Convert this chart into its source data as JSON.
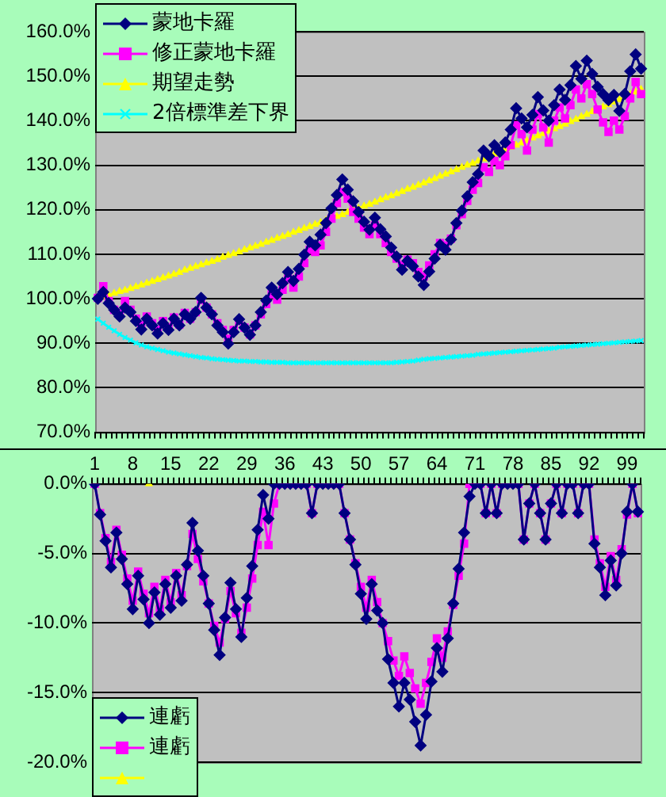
{
  "chart_data": [
    {
      "type": "line",
      "categories": [
        null,
        null,
        null,
        null,
        null,
        null,
        null,
        null,
        null,
        null,
        null,
        null,
        null,
        null,
        null,
        null,
        null,
        null,
        null,
        null,
        null,
        null,
        null,
        null,
        null,
        null,
        null,
        null,
        null,
        null,
        null,
        null,
        null,
        null,
        null,
        null,
        null,
        null,
        null,
        null,
        null,
        null,
        null,
        null,
        null,
        null,
        null,
        null,
        null,
        null,
        null,
        null,
        null,
        null,
        null,
        null,
        null,
        null,
        null,
        null,
        null,
        null,
        null,
        null,
        null,
        null,
        null,
        null,
        null,
        null,
        null,
        null,
        null,
        null,
        null,
        null,
        null,
        null,
        null,
        null,
        null,
        null,
        null,
        null,
        null,
        null,
        null,
        null,
        null,
        null,
        null,
        null,
        null,
        null,
        null,
        null,
        null,
        null,
        null,
        null,
        null
      ],
      "series": [
        {
          "name": "蒙地卡羅",
          "color": "#000080",
          "marker": "diamond",
          "values": [
            100,
            101.5,
            99,
            97.5,
            96,
            98,
            97,
            95,
            93.1,
            95.5,
            94,
            92.2,
            94.5,
            93,
            95.5,
            94,
            96.5,
            95.5,
            97,
            100.2,
            98,
            96.5,
            94,
            92.5,
            89.9,
            92.5,
            95.4,
            93.5,
            91.9,
            94,
            97,
            99.6,
            102.5,
            101,
            103.5,
            106,
            104,
            106.7,
            109.9,
            112.8,
            112,
            114.4,
            117,
            120.3,
            123.3,
            126.8,
            124.5,
            121.9,
            119.5,
            117.3,
            115.5,
            118.2,
            115.6,
            114,
            111.5,
            109.5,
            106.5,
            108.5,
            107.3,
            105,
            103.1,
            106.1,
            109,
            112.1,
            111,
            113.3,
            117,
            119.8,
            123,
            126.2,
            128,
            133.3,
            132,
            134.5,
            133,
            135.1,
            138,
            142.8,
            140.5,
            138.5,
            141.3,
            145.3,
            142.3,
            140,
            143.5,
            147,
            144.7,
            148,
            152.3,
            149.4,
            153.5,
            150.5,
            147.6,
            146,
            144.6,
            145.8,
            142.2,
            146,
            151.1,
            154.9,
            151.7
          ]
        },
        {
          "name": "修正蒙地卡羅",
          "color": "#ff00ff",
          "marker": "square",
          "values": [
            100.2,
            102.8,
            99.5,
            97.5,
            96.8,
            99.5,
            97.5,
            95.5,
            94,
            96,
            94.5,
            93,
            95,
            93.5,
            95.8,
            94.2,
            96.8,
            95.5,
            97,
            99.8,
            98,
            96.5,
            94.5,
            93,
            91,
            93,
            95,
            93.5,
            92,
            94,
            96.5,
            98.8,
            101,
            99.8,
            102,
            104.5,
            102.5,
            105,
            108,
            111,
            110.5,
            112,
            115,
            118,
            121.5,
            124,
            122.5,
            119.5,
            118,
            116,
            114.5,
            116.5,
            114.5,
            112.5,
            110.5,
            109,
            107.5,
            108.8,
            108,
            106,
            105,
            107.5,
            110,
            112.5,
            112,
            113.5,
            116.5,
            119,
            122,
            124.5,
            126,
            129.5,
            128.5,
            131,
            130,
            132,
            134.5,
            139,
            137,
            133.3,
            138,
            141.5,
            138.5,
            135.1,
            140,
            143,
            140.5,
            143.5,
            147,
            145,
            148.2,
            146,
            142.5,
            139.6,
            137.5,
            140,
            138,
            141,
            145,
            148.7,
            146
          ]
        },
        {
          "name": "期望走勢",
          "color": "#ffff00",
          "marker": "triangle",
          "values": [
            100,
            100.4,
            100.8,
            101.2,
            101.6,
            101.9,
            102.3,
            102.7,
            103.1,
            103.5,
            103.9,
            104.3,
            104.7,
            105.1,
            105.5,
            105.9,
            106.4,
            106.8,
            107.2,
            107.6,
            108,
            108.4,
            108.8,
            109.3,
            109.7,
            110.1,
            110.5,
            111,
            111.4,
            111.8,
            112.2,
            112.7,
            113.1,
            113.6,
            114,
            114.4,
            114.9,
            115.3,
            115.8,
            116.2,
            116.7,
            117.1,
            117.6,
            118,
            118.5,
            118.9,
            119.4,
            119.9,
            120.3,
            120.8,
            121.2,
            121.7,
            122.2,
            122.7,
            123.1,
            123.6,
            124.1,
            124.6,
            125,
            125.5,
            126,
            126.5,
            127,
            127.5,
            128,
            128.5,
            129,
            129.5,
            130,
            130.4,
            130.9,
            131.4,
            132,
            132.5,
            133,
            133.5,
            134,
            134.5,
            135,
            135.5,
            136.1,
            136.6,
            137.1,
            137.6,
            138.2,
            138.7,
            139.2,
            139.8,
            140.3,
            140.9,
            141.4,
            142,
            142.5,
            143.1,
            143.6,
            144.2,
            144.7,
            145.3,
            145.9,
            146.4,
            147
          ]
        },
        {
          "name": "2倍標準差下界",
          "color": "#00ffff",
          "marker": "cross",
          "values": [
            95.4,
            94.5,
            93.6,
            92.8,
            92,
            91.3,
            90.7,
            90.1,
            89.6,
            89.2,
            88.9,
            88.6,
            88.3,
            88,
            87.8,
            87.6,
            87.4,
            87.2,
            87,
            86.8,
            86.7,
            86.5,
            86.4,
            86.3,
            86.2,
            86.1,
            86,
            86,
            85.9,
            85.9,
            85.8,
            85.8,
            85.7,
            85.7,
            85.7,
            85.6,
            85.6,
            85.6,
            85.6,
            85.6,
            85.6,
            85.6,
            85.6,
            85.6,
            85.6,
            85.6,
            85.6,
            85.6,
            85.6,
            85.6,
            85.6,
            85.6,
            85.6,
            85.6,
            85.6,
            85.7,
            85.8,
            85.9,
            86,
            86.2,
            86.4,
            86.5,
            86.6,
            86.7,
            86.8,
            86.9,
            87,
            87.1,
            87.2,
            87.3,
            87.5,
            87.6,
            87.7,
            87.8,
            87.9,
            88,
            88.1,
            88.2,
            88.3,
            88.4,
            88.5,
            88.6,
            88.7,
            88.8,
            88.9,
            89.1,
            89.2,
            89.3,
            89.4,
            89.5,
            89.6,
            89.7,
            89.8,
            89.9,
            90,
            90.1,
            90.2,
            90.3,
            90.4,
            90.5,
            90.6
          ]
        }
      ],
      "ylim": [
        70,
        160
      ],
      "yticks": [
        {
          "value": 70,
          "label": "70.0%"
        },
        {
          "value": 80,
          "label": "80.0%"
        },
        {
          "value": 90,
          "label": "90.0%"
        },
        {
          "value": 100,
          "label": "100.0%"
        },
        {
          "value": 110,
          "label": "110.0%"
        },
        {
          "value": 120,
          "label": "120.0%"
        },
        {
          "value": 130,
          "label": "130.0%"
        },
        {
          "value": 140,
          "label": "140.0%"
        },
        {
          "value": 150,
          "label": "150.0%"
        },
        {
          "value": 160,
          "label": "160.0%"
        }
      ],
      "grid": "y",
      "legend": "top left",
      "tick_labels": "y"
    },
    {
      "type": "line",
      "categories": [
        "1",
        null,
        null,
        null,
        null,
        null,
        null,
        "8",
        null,
        null,
        null,
        null,
        null,
        null,
        "15",
        null,
        null,
        null,
        null,
        null,
        null,
        "22",
        null,
        null,
        null,
        null,
        null,
        null,
        "29",
        null,
        null,
        null,
        null,
        null,
        null,
        "36",
        null,
        null,
        null,
        null,
        null,
        null,
        "43",
        null,
        null,
        null,
        null,
        null,
        null,
        "50",
        null,
        null,
        null,
        null,
        null,
        null,
        "57",
        null,
        null,
        null,
        null,
        null,
        null,
        "64",
        null,
        null,
        null,
        null,
        null,
        null,
        "71",
        null,
        null,
        null,
        null,
        null,
        null,
        "78",
        null,
        null,
        null,
        null,
        null,
        null,
        "85",
        null,
        null,
        null,
        null,
        null,
        null,
        "92",
        null,
        null,
        null,
        null,
        null,
        null,
        "99",
        null,
        null
      ],
      "series": [
        {
          "name": "連虧",
          "color": "#000080",
          "marker": "diamond",
          "values": [
            0,
            -2.2,
            -4.1,
            -6,
            -3.5,
            -5.4,
            -7.2,
            -9,
            -6.6,
            -8.3,
            -10,
            -7.8,
            -9.4,
            -7.2,
            -8.9,
            -6.6,
            -8.4,
            -5.8,
            -2.8,
            -4.8,
            -6.6,
            -8.6,
            -10.5,
            -12.3,
            -9.6,
            -7.1,
            -9,
            -11,
            -8.2,
            -5.9,
            -3.3,
            -0.8,
            -2.5,
            0,
            0,
            0,
            0,
            0,
            0,
            0,
            -2.1,
            0,
            0,
            0,
            0,
            0,
            -2.1,
            -4,
            -5.8,
            -7.9,
            -9.7,
            -7.2,
            -9.1,
            -10,
            -12.6,
            -14.3,
            -16,
            -14.3,
            -15.5,
            -17.1,
            -18.8,
            -16.6,
            -14.2,
            -11.8,
            -13.5,
            -11.1,
            -8.6,
            -6.1,
            -3.5,
            -0.9,
            0,
            0,
            -2.1,
            0,
            -2.1,
            0,
            0,
            0,
            0,
            -4,
            -1.4,
            0,
            -2.1,
            -4,
            -1.4,
            0,
            -2.1,
            0,
            0,
            -2.1,
            0,
            0,
            -4.3,
            -6,
            -8,
            -5.5,
            -7.3,
            -5,
            -2,
            0,
            -2
          ]
        },
        {
          "name": "連虧",
          "color": "#ff00ff",
          "marker": "square",
          "values": [
            0,
            -2.1,
            -3.9,
            -5.6,
            -3.3,
            -5.1,
            -6.8,
            -8.4,
            -6.3,
            -7.9,
            -9.3,
            -7.4,
            -9,
            -6.9,
            -8.5,
            -6.4,
            -8,
            -5.9,
            -3.6,
            -5.4,
            -7,
            -8.6,
            -10.2,
            -11.4,
            -9.7,
            -7.7,
            -9.3,
            -10.7,
            -8.9,
            -6.8,
            -4.4,
            -2,
            -4.4,
            -1.4,
            0,
            0,
            0,
            0,
            0,
            0,
            -2.1,
            0,
            0,
            0,
            0,
            0,
            -2.1,
            -4,
            -5.7,
            -7.4,
            -8.9,
            -6.9,
            -8.5,
            -10,
            -11.3,
            -12.7,
            -13.8,
            -12.4,
            -13.6,
            -14.7,
            -15.8,
            -14.3,
            -12.8,
            -11.1,
            -12.5,
            -10.6,
            -8.7,
            -6.6,
            -4.3,
            0,
            0,
            0,
            -2.1,
            0,
            -2.1,
            0,
            0,
            0,
            0,
            -4,
            -1.4,
            0,
            -2.1,
            -4,
            -1.4,
            0,
            -2.1,
            0,
            0,
            -2.1,
            0,
            0,
            -4,
            -5.7,
            -7.4,
            -5.2,
            -6.9,
            -4.7,
            -2.2,
            0,
            -2.1
          ]
        },
        {
          "color": "#ffff00",
          "marker": "triangle",
          "values": [
            null,
            null,
            null,
            null,
            null,
            null,
            null,
            null,
            null,
            null,
            0,
            null,
            null,
            null,
            null,
            null,
            null,
            null,
            null,
            null,
            null,
            null,
            null,
            null,
            null,
            null,
            null,
            null,
            null,
            null,
            null,
            null,
            null,
            null,
            null,
            null,
            null,
            null,
            null,
            null,
            null,
            null,
            null,
            null,
            null,
            null,
            null,
            null,
            null,
            null,
            null,
            null,
            null,
            null,
            null,
            null,
            null,
            null,
            null,
            null,
            null,
            null,
            null,
            null,
            null,
            null,
            null,
            null,
            null,
            null,
            null,
            null,
            null,
            null,
            null,
            null,
            null,
            null,
            null,
            null,
            null,
            null,
            null,
            null,
            null,
            null,
            null,
            null,
            null,
            null,
            null,
            null,
            null,
            null,
            null,
            null,
            null,
            null,
            null,
            null,
            null
          ]
        }
      ],
      "ylim": [
        -20,
        0
      ],
      "yticks": [
        {
          "value": -20,
          "label": "-20.0%"
        },
        {
          "value": -15,
          "label": "-15.0%"
        },
        {
          "value": -10,
          "label": "-10.0%"
        },
        {
          "value": -5,
          "label": "-5.0%"
        },
        {
          "value": 0,
          "label": "0.0%"
        }
      ],
      "grid": "y",
      "legend": "bottom left"
    }
  ]
}
